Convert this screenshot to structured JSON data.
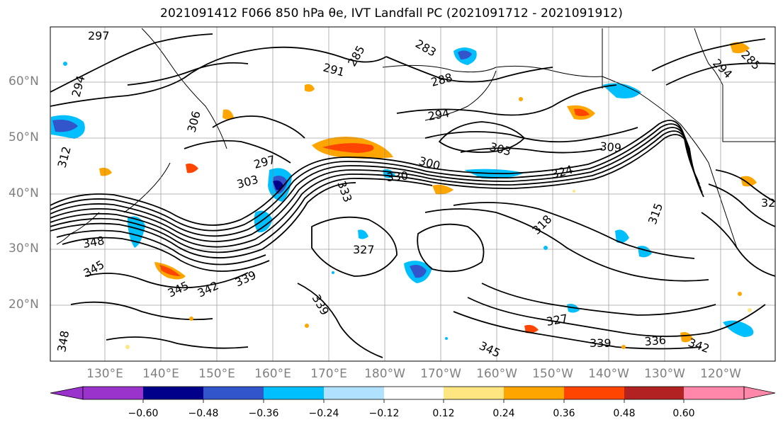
{
  "title": "2021091412 F066 850 hPa θe, IVT Landfall PC (2021091712 - 2021091912)",
  "map": {
    "lat_labels": [
      "60°N",
      "50°N",
      "40°N",
      "30°N",
      "20°N"
    ],
    "lon_labels": [
      "130°E",
      "140°E",
      "150°E",
      "160°E",
      "170°E",
      "180°W",
      "170°W",
      "160°W",
      "150°W",
      "140°W",
      "130°W",
      "120°W"
    ],
    "contour_labels": [
      "297",
      "294",
      "285",
      "283",
      "285",
      "294",
      "291",
      "288",
      "294",
      "306",
      "303",
      "297",
      "300",
      "309",
      "303",
      "330",
      "324",
      "333",
      "327",
      "318",
      "315",
      "348",
      "345",
      "342",
      "345",
      "339",
      "339",
      "327",
      "339",
      "336",
      "342",
      "348",
      "312",
      "32",
      "345"
    ],
    "colors": {
      "contour": "#000000",
      "grid": "#808080",
      "land": "#000000"
    }
  },
  "colorbar": {
    "ticks": [
      "−0.60",
      "−0.48",
      "−0.36",
      "−0.24",
      "−0.12",
      "0.12",
      "0.24",
      "0.36",
      "0.48",
      "0.60"
    ],
    "colors": [
      "#9933cc",
      "#00008b",
      "#3355cc",
      "#00bfff",
      "#b0e2ff",
      "#ffffff",
      "#ffe680",
      "#ffa500",
      "#ff4500",
      "#b22222",
      "#ff88aa"
    ]
  }
}
